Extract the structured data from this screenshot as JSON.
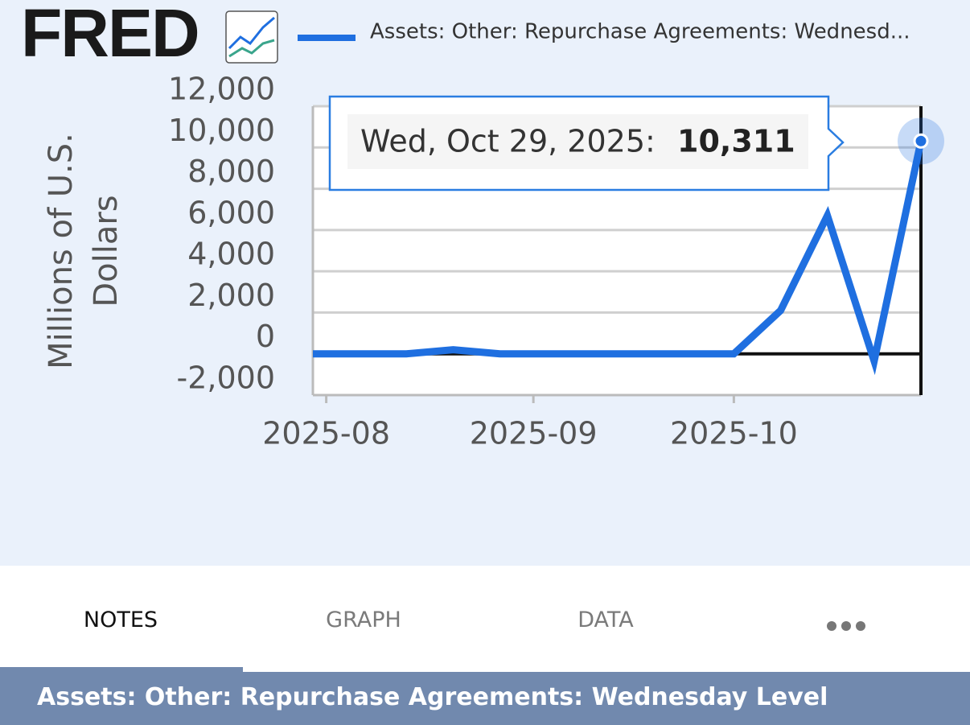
{
  "header": {
    "logo": "FRED"
  },
  "chart_data": {
    "type": "line",
    "x": [
      "2025-07-30",
      "2025-08-06",
      "2025-08-13",
      "2025-08-20",
      "2025-08-27",
      "2025-09-03",
      "2025-09-10",
      "2025-09-17",
      "2025-09-24",
      "2025-10-01",
      "2025-10-08",
      "2025-10-15",
      "2025-10-22",
      "2025-10-29"
    ],
    "series": [
      {
        "name": "Assets: Other: Repurchase Agreements: Wednesd...",
        "color": "#1f6fe0",
        "values": [
          0,
          0,
          0,
          200,
          0,
          0,
          0,
          0,
          0,
          0,
          2100,
          6700,
          -350,
          10311
        ]
      }
    ],
    "y_label": "Millions of U.S. Dollars",
    "xlim": [
      "2025-07-30",
      "2025-10-29"
    ],
    "xticks": [
      {
        "value": "2025-08-01",
        "label": "2025-08"
      },
      {
        "value": "2025-09-01",
        "label": "2025-09"
      },
      {
        "value": "2025-10-01",
        "label": "2025-10"
      }
    ],
    "ylim": [
      -2000,
      12000
    ],
    "yticks": [
      {
        "value": -2000,
        "label": "-2,000"
      },
      0,
      {
        "value": 2000,
        "label": "2,000"
      },
      {
        "value": 4000,
        "label": "4,000"
      },
      {
        "value": 6000,
        "label": "6,000"
      },
      {
        "value": 8000,
        "label": "8,000"
      },
      {
        "value": 10000,
        "label": "10,000"
      },
      {
        "value": 12000,
        "label": "12,000"
      }
    ],
    "grid": true,
    "tooltip": {
      "date": "Wed, Oct 29, 2025:",
      "value": "10,311"
    }
  },
  "tabs": [
    "NOTES",
    "GRAPH",
    "DATA"
  ],
  "footer": {
    "title": "Assets: Other: Repurchase Agreements: Wednesday Level"
  }
}
